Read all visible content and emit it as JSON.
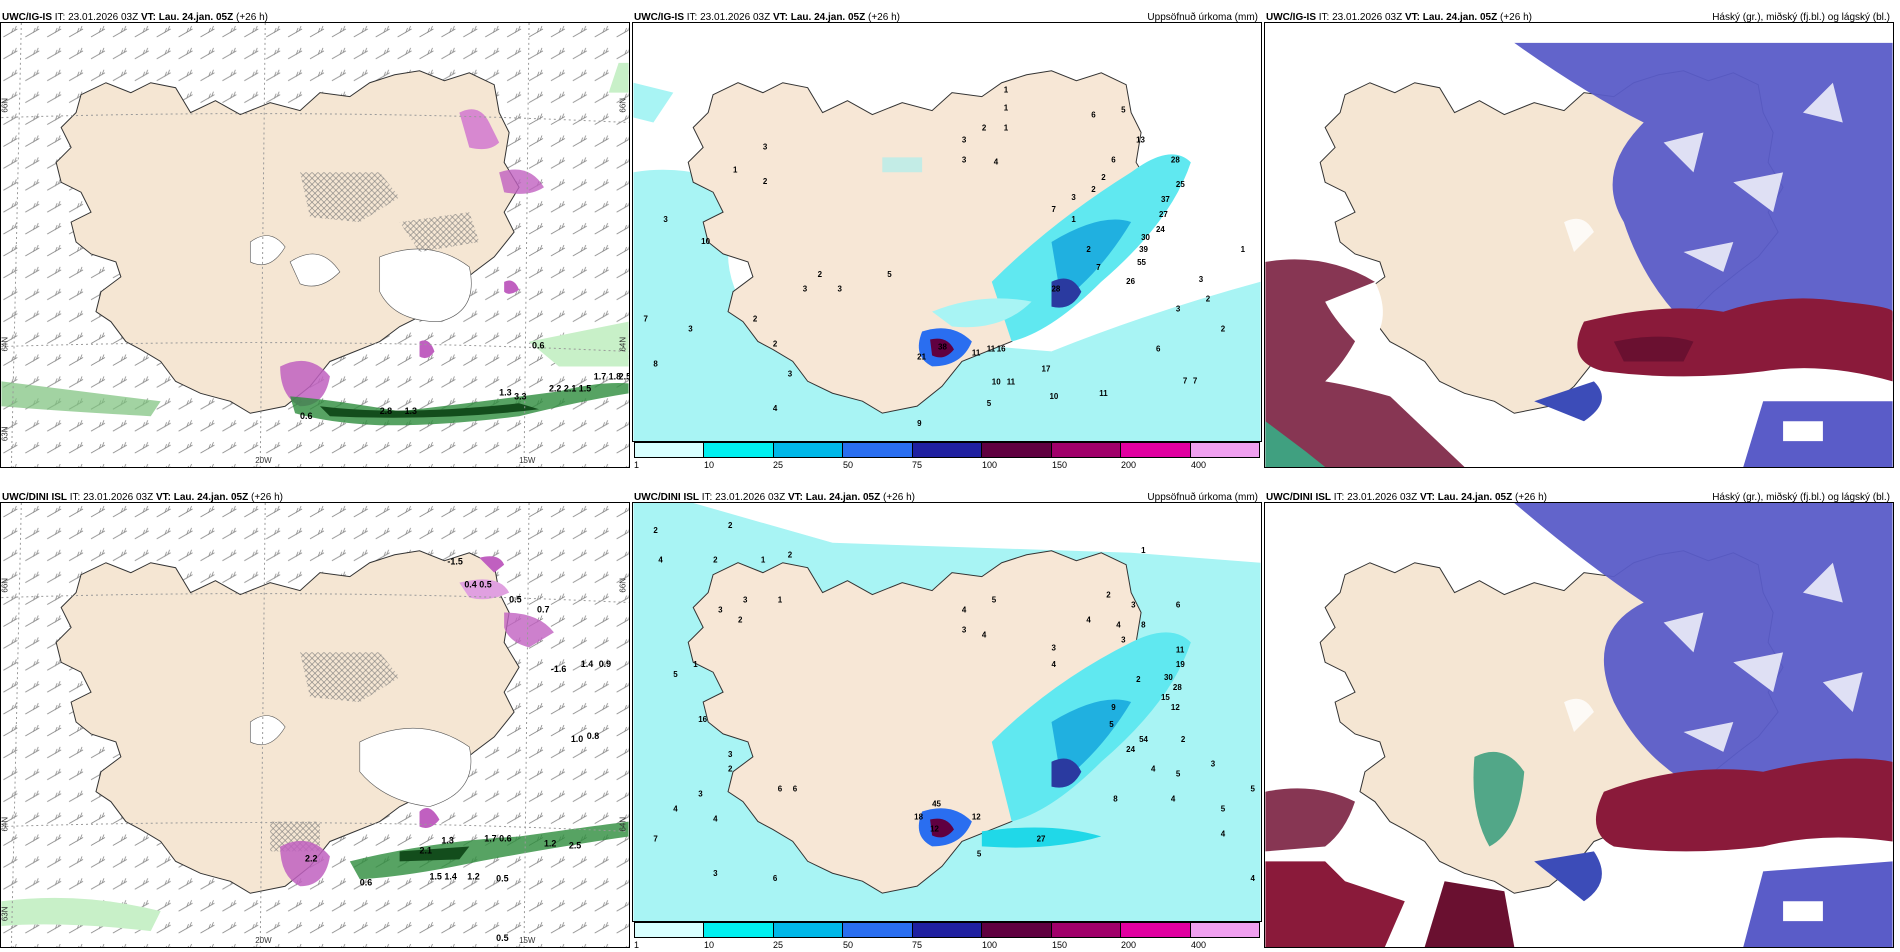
{
  "panels": {
    "p1": {
      "model": "UWC/IG-IS",
      "it_label": "IT:",
      "it": "23.01.2026 03Z",
      "vt_label": "VT:",
      "vt": "Lau. 24.jan. 05Z",
      "lead": "(+26 h)"
    },
    "p2": {
      "model": "UWC/IG-IS",
      "it_label": "IT:",
      "it": "23.01.2026 03Z",
      "vt_label": "VT:",
      "vt": "Lau. 24.jan. 05Z",
      "lead": "(+26 h)",
      "right": "Uppsöfnuð úrkoma (mm)"
    },
    "p3": {
      "model": "UWC/IG-IS",
      "it_label": "IT:",
      "it": "23.01.2026 03Z",
      "vt_label": "VT:",
      "vt": "Lau. 24.jan. 05Z",
      "lead": "(+26 h)",
      "right": "Háský (gr.), miðský (fj.bl.) og lágský (bl.)"
    },
    "p4": {
      "model": "UWC/DINI ISL",
      "it_label": "IT:",
      "it": "23.01.2026 03Z",
      "vt_label": "VT:",
      "vt": "Lau. 24.jan. 05Z",
      "lead": "(+26 h)"
    },
    "p5": {
      "model": "UWC/DINI ISL",
      "it_label": "IT:",
      "it": "23.01.2026 03Z",
      "vt_label": "VT:",
      "vt": "Lau. 24.jan. 05Z",
      "lead": "(+26 h)",
      "right": "Uppsöfnuð úrkoma (mm)"
    },
    "p6": {
      "model": "UWC/DINI ISL",
      "it_label": "IT:",
      "it": "23.01.2026 03Z",
      "vt_label": "VT:",
      "vt": "Lau. 24.jan. 05Z",
      "lead": "(+26 h)",
      "right": "Háský (gr.), miðský (fj.bl.) og lágský (bl.)"
    }
  },
  "axes": {
    "lat_66": "66N",
    "lat_64": "64N",
    "lat_63": "63N",
    "lon_20": "20W",
    "lon_15": "15W"
  },
  "legend": {
    "labels": [
      "1",
      "10",
      "25",
      "50",
      "75",
      "100",
      "150",
      "200",
      "400"
    ],
    "colors": [
      "#d8ffff",
      "#00f0f0",
      "#00b8e8",
      "#2a6ef0",
      "#2020a0",
      "#600040",
      "#a0006a",
      "#e000a0",
      "#f0a0f0"
    ]
  },
  "precip_ig": [
    "1",
    "1",
    "3",
    "2",
    "1",
    "3",
    "4",
    "6",
    "5",
    "13",
    "28",
    "25",
    "37",
    "27",
    "24",
    "30",
    "39",
    "55",
    "26",
    "10",
    "2",
    "6",
    "2",
    "7",
    "3",
    "2",
    "3",
    "1",
    "5",
    "1",
    "2",
    "3",
    "3",
    "2",
    "7",
    "3",
    "8",
    "3",
    "2",
    "4",
    "7",
    "2",
    "21",
    "38",
    "11",
    "11",
    "17",
    "10",
    "11",
    "16",
    "9",
    "5",
    "10",
    "11",
    "6",
    "7",
    "7",
    "3",
    "2",
    "2",
    "1",
    "28",
    "3",
    "3"
  ],
  "precip_dini": [
    "2",
    "2",
    "4",
    "2",
    "3",
    "1",
    "5",
    "1",
    "2",
    "3",
    "1",
    "2",
    "4",
    "3",
    "4",
    "5",
    "3",
    "4",
    "4",
    "2",
    "3",
    "4",
    "3",
    "8",
    "11",
    "19",
    "30",
    "28",
    "15",
    "12",
    "2",
    "54",
    "24",
    "9",
    "5",
    "1",
    "16",
    "3",
    "7",
    "2",
    "6",
    "6",
    "4",
    "3",
    "4",
    "45",
    "12",
    "18",
    "12",
    "27",
    "5",
    "8",
    "5",
    "4",
    "4",
    "3",
    "5",
    "4",
    "5",
    "4",
    "2",
    "6",
    "6",
    "3"
  ],
  "pressure_ig": [
    "0.6",
    "1.7",
    "1.8",
    "2.2",
    "2.1",
    "1.5",
    "1.3",
    "2.5",
    "1.3",
    "2.8",
    "0.6",
    "3.3"
  ],
  "pressure_dini": [
    "-1.5",
    "0.4",
    "0.5",
    "0.5",
    "0.7",
    "1.4",
    "0.9",
    "-1.6",
    "1.0",
    "0.8",
    "1.3",
    "1.2",
    "2.1",
    "1.7",
    "0.6",
    "2.5",
    "0.6",
    "0.5",
    "0.5",
    "1.2",
    "2.2",
    "1.4",
    "1.5"
  ]
}
